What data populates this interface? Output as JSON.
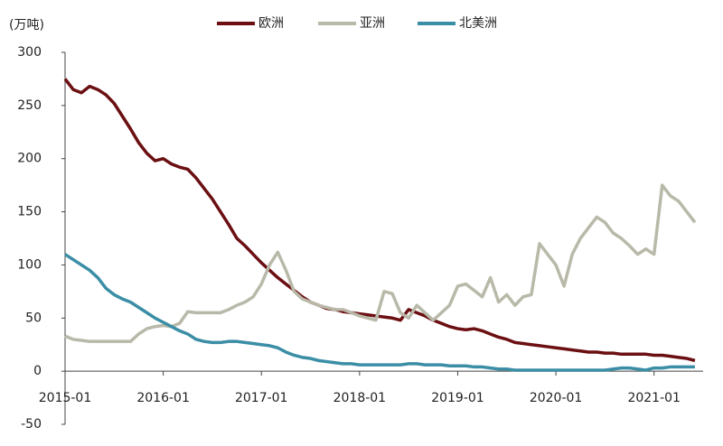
{
  "chart_data": {
    "type": "line",
    "y_label": "(万吨)",
    "x": [
      "2015-01",
      "2015-02",
      "2015-03",
      "2015-04",
      "2015-05",
      "2015-06",
      "2015-07",
      "2015-08",
      "2015-09",
      "2015-10",
      "2015-11",
      "2015-12",
      "2016-01",
      "2016-02",
      "2016-03",
      "2016-04",
      "2016-05",
      "2016-06",
      "2016-07",
      "2016-08",
      "2016-09",
      "2016-10",
      "2016-11",
      "2016-12",
      "2017-01",
      "2017-02",
      "2017-03",
      "2017-04",
      "2017-05",
      "2017-06",
      "2017-07",
      "2017-08",
      "2017-09",
      "2017-10",
      "2017-11",
      "2017-12",
      "2018-01",
      "2018-02",
      "2018-03",
      "2018-04",
      "2018-05",
      "2018-06",
      "2018-07",
      "2018-08",
      "2018-09",
      "2018-10",
      "2018-11",
      "2018-12",
      "2019-01",
      "2019-02",
      "2019-03",
      "2019-04",
      "2019-05",
      "2019-06",
      "2019-07",
      "2019-08",
      "2019-09",
      "2019-10",
      "2019-11",
      "2019-12",
      "2020-01",
      "2020-02",
      "2020-03",
      "2020-04",
      "2020-05",
      "2020-06",
      "2020-07",
      "2020-08",
      "2020-09",
      "2020-10",
      "2020-11",
      "2020-12",
      "2021-01",
      "2021-02",
      "2021-03",
      "2021-04",
      "2021-05",
      "2021-06"
    ],
    "series": [
      {
        "name": "欧洲",
        "color": "#6b0f12",
        "values": [
          275,
          265,
          262,
          268,
          265,
          260,
          252,
          240,
          228,
          215,
          205,
          198,
          200,
          195,
          192,
          190,
          182,
          172,
          162,
          150,
          138,
          125,
          118,
          110,
          102,
          95,
          88,
          82,
          76,
          70,
          65,
          62,
          59,
          58,
          56,
          55,
          54,
          53,
          52,
          51,
          50,
          48,
          58,
          55,
          52,
          48,
          45,
          42,
          40,
          39,
          40,
          38,
          35,
          32,
          30,
          27,
          26,
          25,
          24,
          23,
          22,
          21,
          20,
          19,
          18,
          18,
          17,
          17,
          16,
          16,
          16,
          16,
          15,
          15,
          14,
          13,
          12,
          10
        ]
      },
      {
        "name": "亚洲",
        "color": "#b9b9a9",
        "values": [
          33,
          30,
          29,
          28,
          28,
          28,
          28,
          28,
          28,
          35,
          40,
          42,
          43,
          42,
          45,
          56,
          55,
          55,
          55,
          55,
          58,
          62,
          65,
          70,
          82,
          100,
          112,
          95,
          75,
          68,
          65,
          62,
          60,
          58,
          58,
          55,
          52,
          50,
          48,
          75,
          73,
          55,
          50,
          62,
          55,
          48,
          55,
          62,
          80,
          82,
          76,
          70,
          88,
          65,
          72,
          62,
          70,
          72,
          120,
          110,
          100,
          80,
          110,
          125,
          135,
          145,
          140,
          130,
          125,
          118,
          110,
          115,
          110,
          175,
          165,
          160,
          150,
          140
        ]
      },
      {
        "name": "北美洲",
        "color": "#3b8ea6",
        "values": [
          110,
          105,
          100,
          95,
          88,
          78,
          72,
          68,
          65,
          60,
          55,
          50,
          46,
          42,
          38,
          35,
          30,
          28,
          27,
          27,
          28,
          28,
          27,
          26,
          25,
          24,
          22,
          18,
          15,
          13,
          12,
          10,
          9,
          8,
          7,
          7,
          6,
          6,
          6,
          6,
          6,
          6,
          7,
          7,
          6,
          6,
          6,
          5,
          5,
          5,
          4,
          4,
          3,
          2,
          2,
          1,
          1,
          1,
          1,
          1,
          1,
          1,
          1,
          1,
          1,
          1,
          1,
          2,
          3,
          3,
          2,
          1,
          3,
          3,
          4,
          4,
          4,
          4
        ]
      }
    ],
    "xlim": [
      "2015-01",
      "2021-07"
    ],
    "xticks": [
      "2015-01",
      "2016-01",
      "2017-01",
      "2018-01",
      "2019-01",
      "2020-01",
      "2021-01"
    ],
    "ylim": [
      -50,
      300
    ],
    "yticks": [
      -50,
      0,
      50,
      100,
      150,
      200,
      250,
      300
    ]
  }
}
